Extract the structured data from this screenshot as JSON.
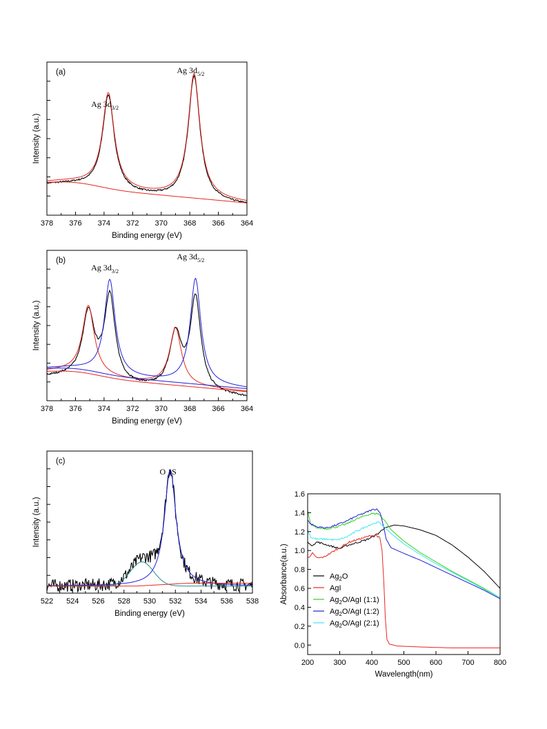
{
  "chart_data": [
    {
      "id": "a",
      "type": "line",
      "panel_label": "(a)",
      "xlabel": "Binding energy (eV)",
      "ylabel": "Intensity (a.u.)",
      "xlim": [
        378,
        364
      ],
      "xticks": [
        378,
        376,
        374,
        372,
        370,
        368,
        366,
        364
      ],
      "x_reversed": true,
      "y_tick_labels_shown": false,
      "annotations": [
        {
          "text": "Ag 3d",
          "sub": "3/2",
          "x": 373.7
        },
        {
          "text": "Ag 3d",
          "sub": "5/2",
          "x": 367.7
        }
      ],
      "peaks": [
        {
          "center": 373.7,
          "height": 0.62,
          "width": 0.5
        },
        {
          "center": 367.7,
          "height": 0.81,
          "width": 0.5
        }
      ],
      "series": [
        {
          "color": "#000000"
        },
        {
          "color": "#e8261e"
        },
        {
          "color": "#e8261e"
        }
      ]
    },
    {
      "id": "b",
      "type": "line",
      "panel_label": "(b)",
      "xlabel": "Binding energy (eV)",
      "ylabel": "Intensity (a.u.)",
      "xlim": [
        378,
        364
      ],
      "xticks": [
        378,
        376,
        374,
        372,
        370,
        368,
        366,
        364
      ],
      "x_reversed": true,
      "y_tick_labels_shown": false,
      "annotations": [
        {
          "text": "Ag 3d",
          "sub": "3/2",
          "x": 373.7
        },
        {
          "text": "Ag 3d",
          "sub": "5/2",
          "x": 367.7
        }
      ],
      "peaks": [
        {
          "center": 375.1,
          "height": 0.45,
          "width": 0.5
        },
        {
          "center": 373.6,
          "height": 0.63,
          "width": 0.45
        },
        {
          "center": 369.0,
          "height": 0.38,
          "width": 0.5
        },
        {
          "center": 367.6,
          "height": 0.7,
          "width": 0.45
        }
      ],
      "series": [
        {
          "color": "#000000"
        },
        {
          "color": "#e8261e"
        },
        {
          "color": "#1f1fd6"
        }
      ]
    },
    {
      "id": "c",
      "type": "line",
      "panel_label": "(c)",
      "xlabel": "Binding energy (eV)",
      "ylabel": "Intensity (a.u.)",
      "xlim": [
        522,
        538
      ],
      "xticks": [
        522,
        524,
        526,
        528,
        530,
        532,
        534,
        536,
        538
      ],
      "x_reversed": false,
      "y_tick_labels_shown": false,
      "annotations": [
        {
          "text": "O 1S",
          "sub": "",
          "x": 531.7
        }
      ],
      "peaks": [
        {
          "center": 531.6,
          "height": 0.82,
          "width": 0.55
        },
        {
          "center": 529.4,
          "height": 0.17,
          "width": 0.9
        }
      ],
      "series": [
        {
          "color": "#000000"
        },
        {
          "color": "#1f1fd6"
        },
        {
          "color": "#1e8c8c"
        },
        {
          "color": "#e8261e"
        }
      ]
    },
    {
      "id": "d",
      "type": "line",
      "xlabel": "Wavelength(nm)",
      "ylabel": "Absorbance(a.u.)",
      "xlim": [
        200,
        800
      ],
      "ylim": [
        -0.1,
        1.6
      ],
      "xticks": [
        200,
        300,
        400,
        500,
        600,
        700,
        800
      ],
      "yticks": [
        0.0,
        0.2,
        0.4,
        0.6,
        0.8,
        1.0,
        1.2,
        1.4,
        1.6
      ],
      "ytick_labels": [
        "0.0",
        "0.2",
        "0.4",
        "0.6",
        "0.8",
        "1.0",
        "1.2",
        "1.4",
        "1.6"
      ],
      "legend_position": "bottom-left",
      "series": [
        {
          "name": "Ag",
          "sub": "2",
          "name_rest": "O",
          "color": "#000000",
          "x": [
            200,
            210,
            230,
            250,
            280,
            300,
            320,
            350,
            380,
            400,
            420,
            440,
            470,
            500,
            550,
            600,
            650,
            700,
            750,
            800
          ],
          "y": [
            1.1,
            1.05,
            1.09,
            1.07,
            1.04,
            1.02,
            1.05,
            1.08,
            1.11,
            1.14,
            1.18,
            1.24,
            1.27,
            1.26,
            1.22,
            1.16,
            1.06,
            0.93,
            0.78,
            0.6
          ]
        },
        {
          "name": "AgI",
          "sub": "",
          "name_rest": "",
          "color": "#e8261e",
          "x": [
            200,
            205,
            215,
            230,
            250,
            280,
            300,
            330,
            360,
            380,
            400,
            415,
            425,
            432,
            437,
            442,
            447,
            455,
            480,
            550,
            650,
            800
          ],
          "y": [
            0.94,
            0.92,
            0.97,
            0.92,
            0.93,
            0.99,
            1.03,
            1.09,
            1.12,
            1.14,
            1.16,
            1.16,
            1.13,
            1.0,
            0.7,
            0.3,
            0.06,
            0.01,
            -0.01,
            -0.02,
            -0.03,
            -0.03
          ]
        },
        {
          "name": "Ag",
          "sub": "2",
          "name_rest": "O/AgI (1:1)",
          "color": "#2fd11f",
          "x": [
            200,
            210,
            230,
            260,
            290,
            320,
            350,
            380,
            400,
            420,
            440,
            460,
            500,
            550,
            600,
            650,
            700,
            750,
            800
          ],
          "y": [
            1.42,
            1.27,
            1.24,
            1.23,
            1.25,
            1.28,
            1.33,
            1.37,
            1.39,
            1.39,
            1.32,
            1.22,
            1.1,
            0.98,
            0.88,
            0.78,
            0.69,
            0.6,
            0.5
          ]
        },
        {
          "name": "Ag",
          "sub": "2",
          "name_rest": "O/AgI (1:2)",
          "color": "#1f1fd6",
          "x": [
            200,
            210,
            230,
            260,
            290,
            320,
            350,
            380,
            400,
            415,
            425,
            435,
            445,
            460,
            500,
            550,
            600,
            650,
            700,
            750,
            800
          ],
          "y": [
            1.32,
            1.28,
            1.25,
            1.24,
            1.27,
            1.31,
            1.36,
            1.4,
            1.43,
            1.44,
            1.41,
            1.28,
            1.12,
            1.03,
            0.97,
            0.9,
            0.82,
            0.74,
            0.66,
            0.58,
            0.49
          ]
        },
        {
          "name": "Ag",
          "sub": "2",
          "name_rest": "O/AgI (2:1)",
          "color": "#3ee6f0",
          "x": [
            200,
            210,
            230,
            260,
            290,
            320,
            350,
            380,
            400,
            420,
            440,
            460,
            500,
            550,
            600,
            650,
            700,
            750,
            800
          ],
          "y": [
            1.22,
            1.14,
            1.12,
            1.12,
            1.11,
            1.14,
            1.2,
            1.25,
            1.28,
            1.3,
            1.25,
            1.18,
            1.07,
            0.96,
            0.86,
            0.77,
            0.68,
            0.59,
            0.5
          ]
        }
      ]
    }
  ]
}
